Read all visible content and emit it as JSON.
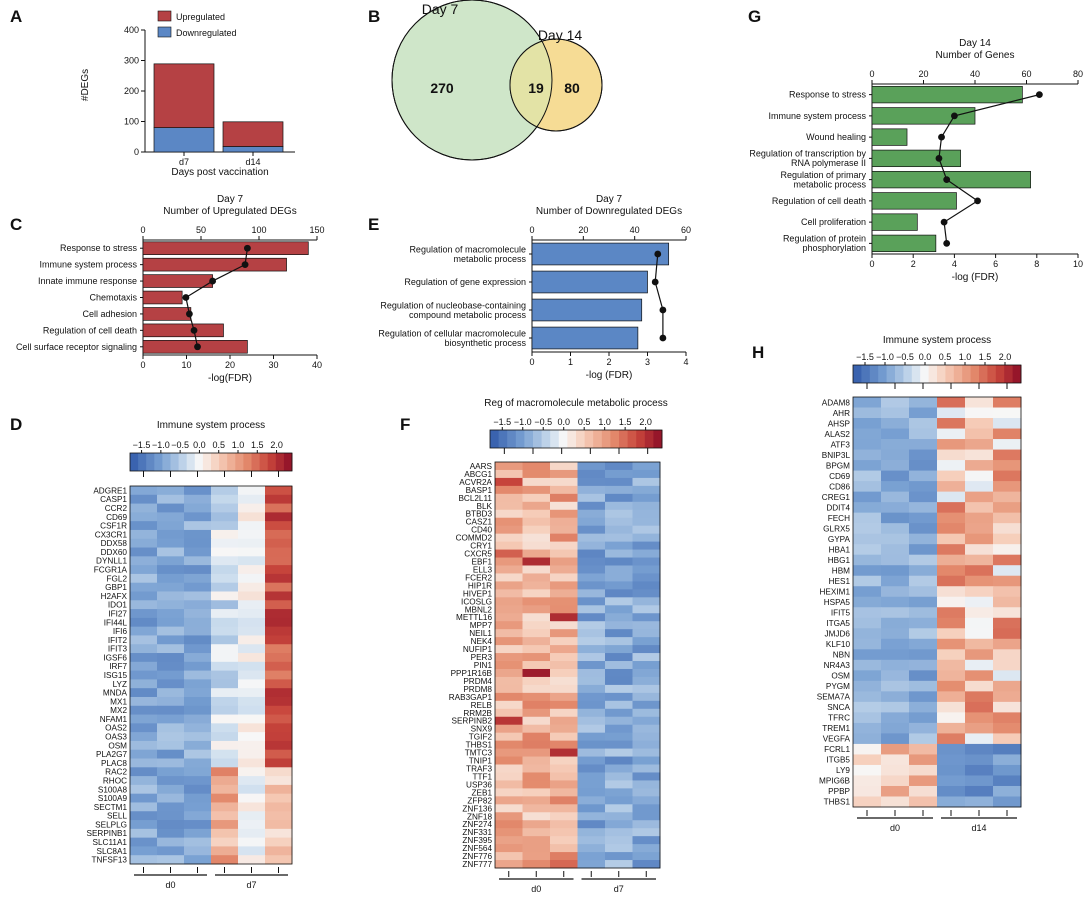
{
  "panel_labels": [
    "A",
    "B",
    "C",
    "D",
    "E",
    "F",
    "G",
    "H"
  ],
  "chart_data": [
    {
      "panel": "A",
      "type": "bar",
      "stacked": true,
      "categories": [
        "d7",
        "d14"
      ],
      "series": [
        {
          "name": "Downregulated",
          "values": [
            80,
            18
          ],
          "color": "#5b87c5"
        },
        {
          "name": "Upregulated",
          "values": [
            209,
            81
          ],
          "color": "#b54144"
        }
      ],
      "ylabel": "#DEGs",
      "xlabel": "Days post vaccination",
      "ylim": [
        0,
        400
      ],
      "yticks": [
        "0",
        "100",
        "200",
        "300",
        "400"
      ],
      "legend": [
        "Upregulated",
        "Downregulated"
      ],
      "legend_position": "top-right"
    },
    {
      "panel": "B",
      "type": "venn",
      "sets": [
        {
          "name": "Day 7",
          "only": "270",
          "color": "#cfe6c9"
        },
        {
          "name": "Day 14",
          "only": "80",
          "color": "#f6dc95"
        }
      ],
      "overlap": "19"
    },
    {
      "panel": "C",
      "type": "bar",
      "orientation": "horizontal",
      "title": "Day 7",
      "subtitle": "Number of Upregulated DEGs",
      "categories": [
        "Response to stress",
        "Immune system process",
        "Innate immune response",
        "Chemotaxis",
        "Cell adhesion",
        "Regulation of cell death",
        "Cell surface receptor signaling"
      ],
      "values": [
        38,
        33,
        16,
        9,
        11,
        18.5,
        24
      ],
      "xlabel": "-log(FDR)",
      "xlim": [
        0,
        40
      ],
      "xticks": [
        "0",
        "10",
        "20",
        "30",
        "40"
      ],
      "top_axis": {
        "lim": [
          0,
          150
        ],
        "ticks": [
          "0",
          "50",
          "100",
          "150"
        ],
        "line_values": [
          90,
          88,
          60,
          37,
          40,
          44,
          47
        ]
      },
      "bar_color": "#b54144"
    },
    {
      "panel": "E",
      "type": "bar",
      "orientation": "horizontal",
      "title": "Day 7",
      "subtitle": "Number of Downregulated DEGs",
      "categories": [
        "Regulation of macromolecule metabolic process",
        "Regulation of gene expression",
        "Regulation of nucleobase-containing compound metabolic process",
        "Regulation of cellular macromolecule biosynthetic process"
      ],
      "values": [
        3.55,
        3.0,
        2.85,
        2.75
      ],
      "xlabel": "-log (FDR)",
      "xlim": [
        0,
        4
      ],
      "xticks": [
        "0",
        "1",
        "2",
        "3",
        "4"
      ],
      "top_axis": {
        "lim": [
          0,
          60
        ],
        "ticks": [
          "0",
          "20",
          "40",
          "60"
        ],
        "line_values": [
          49,
          48,
          51,
          51
        ]
      },
      "bar_color": "#5b87c5"
    },
    {
      "panel": "G",
      "type": "bar",
      "orientation": "horizontal",
      "title": "Day 14",
      "subtitle": "Number of Genes",
      "categories": [
        "Response to stress",
        "Immune system process",
        "Wound healing",
        "Regulation of transcription by RNA polymerase II",
        "Regulation of primary metabolic process",
        "Regulation of cell death",
        "Cell proliferation",
        "Regulation of protein phosphorylation"
      ],
      "values": [
        7.3,
        5.0,
        1.7,
        4.3,
        7.7,
        4.1,
        2.2,
        3.1
      ],
      "xlabel": "-log (FDR)",
      "xlim": [
        0,
        10
      ],
      "xticks": [
        "0",
        "2",
        "4",
        "6",
        "8",
        "10"
      ],
      "top_axis": {
        "lim": [
          0,
          80
        ],
        "ticks": [
          "0",
          "20",
          "40",
          "60",
          "80"
        ],
        "line_values": [
          65,
          32,
          27,
          26,
          29,
          41,
          28,
          29
        ]
      },
      "bar_color": "#5aa15a"
    },
    {
      "panel": "D",
      "type": "heatmap",
      "title": "Immune system process",
      "colorbar_ticks": [
        "−1.5",
        "−1.0",
        "−0.5",
        "0.0",
        "0.5",
        "1.0",
        "1.5",
        "2.0"
      ],
      "colorbar_range": [
        -1.8,
        2.4
      ],
      "groups": [
        "d0",
        "d7"
      ],
      "rows": [
        "ADGRE1",
        "CASP1",
        "CCR2",
        "CD69",
        "CSF1R",
        "CX3CR1",
        "DDX58",
        "DDX60",
        "DYNLL1",
        "FCGR1A",
        "FGL2",
        "GBP1",
        "H2AFX",
        "IDO1",
        "IFI27",
        "IFI44L",
        "IFI6",
        "IFIT2",
        "IFIT3",
        "IGSF6",
        "IRF7",
        "ISG15",
        "LYZ",
        "MNDA",
        "MX1",
        "MX2",
        "NFAM1",
        "OAS2",
        "OAS3",
        "OSM",
        "PLA2G7",
        "PLAC8",
        "RAC2",
        "RHOC",
        "S100A8",
        "S100A9",
        "SECTM1",
        "SELL",
        "SELPLG",
        "SERPINB1",
        "SLC11A1",
        "SLC8A1",
        "TNFSF13"
      ]
    },
    {
      "panel": "F",
      "type": "heatmap",
      "title": "Reg of macromolecule metabolic process",
      "colorbar_ticks": [
        "−1.5",
        "−1.0",
        "−0.5",
        "0.0",
        "0.5",
        "1.0",
        "1.5",
        "2.0"
      ],
      "colorbar_range": [
        -1.8,
        2.4
      ],
      "groups": [
        "d0",
        "d7"
      ],
      "rows": [
        "AARS",
        "ABCG1",
        "ACVR2A",
        "BASP1",
        "BCL2L11",
        "BLK",
        "BTBD3",
        "CASZ1",
        "CD40",
        "COMMD2",
        "CRY1",
        "CXCR5",
        "EBF1",
        "ELL3",
        "FCER2",
        "HIP1R",
        "HIVEP1",
        "ICOSLG",
        "MBNL2",
        "METTL16",
        "MPP7",
        "NEIL1",
        "NEK4",
        "NUFIP1",
        "PER3",
        "PIN1",
        "PPP1R16B",
        "PRDM4",
        "PRDM8",
        "RAB3GAP1",
        "RELB",
        "RRM2B",
        "SERPINB2",
        "SNX9",
        "TGIF2",
        "THBS1",
        "TMTC3",
        "TNIP1",
        "TRAF3",
        "TTF1",
        "USP36",
        "ZEB1",
        "ZFP82",
        "ZNF136",
        "ZNF18",
        "ZNF274",
        "ZNF331",
        "ZNF395",
        "ZNF564",
        "ZNF776",
        "ZNF777"
      ]
    },
    {
      "panel": "H",
      "type": "heatmap",
      "title": "Immune system process",
      "colorbar_ticks": [
        "−1.5",
        "−1.0",
        "−0.5",
        "0.0",
        "0.5",
        "1.0",
        "1.5",
        "2.0"
      ],
      "colorbar_range": [
        -1.8,
        2.4
      ],
      "groups": [
        "d0",
        "d14"
      ],
      "rows": [
        "ADAM8",
        "AHR",
        "AHSP",
        "ALAS2",
        "ATF3",
        "BNIP3L",
        "BPGM",
        "CD69",
        "CD86",
        "CREG1",
        "DDIT4",
        "FECH",
        "GLRX5",
        "GYPA",
        "HBA1",
        "HBG1",
        "HBM",
        "HES1",
        "HEXIM1",
        "HSPA5",
        "IFIT5",
        "ITGA5",
        "JMJD6",
        "KLF10",
        "NBN",
        "NR4A3",
        "OSM",
        "PYGM",
        "SEMA7A",
        "SNCA",
        "TFRC",
        "TREM1",
        "VEGFA",
        "FCRL1",
        "ITGB5",
        "LY9",
        "MPIG6B",
        "PPBP",
        "THBS1"
      ]
    }
  ]
}
